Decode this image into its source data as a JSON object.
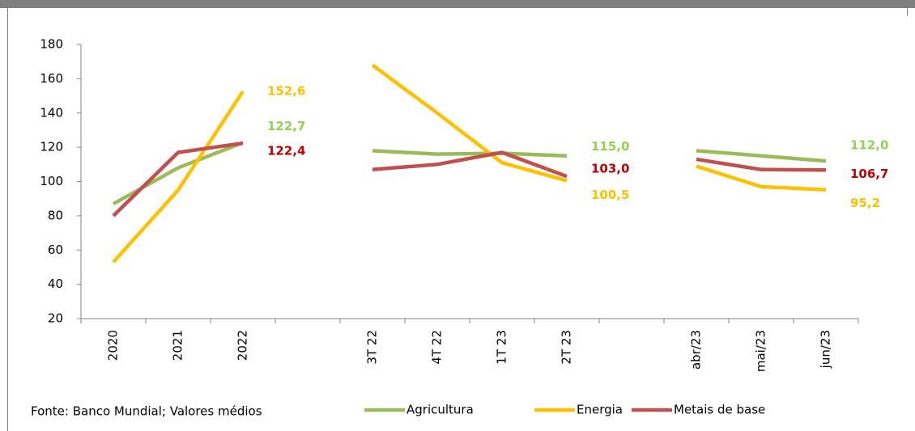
{
  "chart_data": {
    "type": "line",
    "source": "Fonte: Banco Mundial; Valores médios",
    "categories": [
      "2020",
      "2021",
      "2022",
      null,
      "3T 22",
      "4T 22",
      "1T 23",
      "2T 23",
      null,
      "abr/23",
      "mai/23",
      "jun/23"
    ],
    "series": [
      {
        "name": "Agricultura",
        "color": "#9bbb59",
        "label_color": "#92d050",
        "values": [
          87,
          108,
          122.7,
          null,
          118,
          116,
          116.5,
          115.0,
          null,
          118,
          115,
          112.0
        ],
        "value_labels": [
          null,
          null,
          "122,7",
          null,
          null,
          null,
          null,
          "115,0",
          null,
          null,
          null,
          "112,0"
        ]
      },
      {
        "name": "Energia",
        "color": "#ffc000",
        "label_color": "#ffc000",
        "values": [
          53,
          95,
          152.6,
          null,
          168,
          140,
          111,
          100.5,
          null,
          109,
          97,
          95.2
        ],
        "value_labels": [
          null,
          null,
          "152,6",
          null,
          null,
          null,
          null,
          "100,5",
          null,
          null,
          null,
          "95,2"
        ]
      },
      {
        "name": "Metais de base",
        "color": "#c0504d",
        "label_color": "#c00000",
        "values": [
          80,
          117,
          122.4,
          null,
          107,
          110,
          117,
          103.0,
          null,
          113,
          107,
          106.7
        ],
        "value_labels": [
          null,
          null,
          "122,4",
          null,
          null,
          null,
          null,
          "103,0",
          null,
          null,
          null,
          "106,7"
        ]
      }
    ],
    "ylim": [
      20,
      180
    ],
    "yticks": [
      20,
      40,
      60,
      80,
      100,
      120,
      140,
      160,
      180
    ],
    "grid": false
  }
}
